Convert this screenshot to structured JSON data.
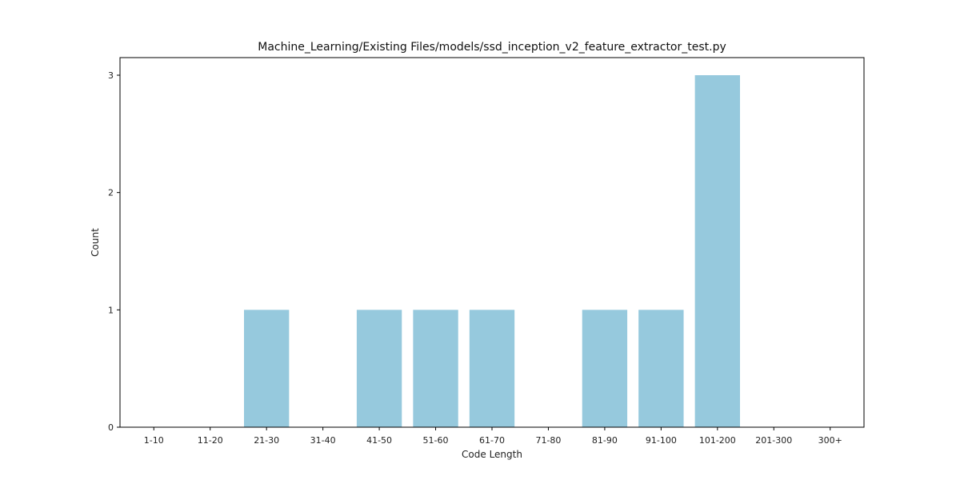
{
  "chart_data": {
    "type": "bar",
    "title": "Machine_Learning/Existing Files/models/ssd_inception_v2_feature_extractor_test.py",
    "xlabel": "Code Length",
    "ylabel": "Count",
    "categories": [
      "1-10",
      "11-20",
      "21-30",
      "31-40",
      "41-50",
      "51-60",
      "61-70",
      "71-80",
      "81-90",
      "91-100",
      "101-200",
      "201-300",
      "300+"
    ],
    "values": [
      0,
      0,
      1,
      0,
      1,
      1,
      1,
      0,
      1,
      1,
      3,
      0,
      0
    ],
    "ylim": [
      0,
      3.15
    ],
    "yticks": [
      "0",
      "1",
      "2",
      "3"
    ],
    "bar_color": "#96c9dd",
    "grid": false,
    "legend": "none"
  }
}
